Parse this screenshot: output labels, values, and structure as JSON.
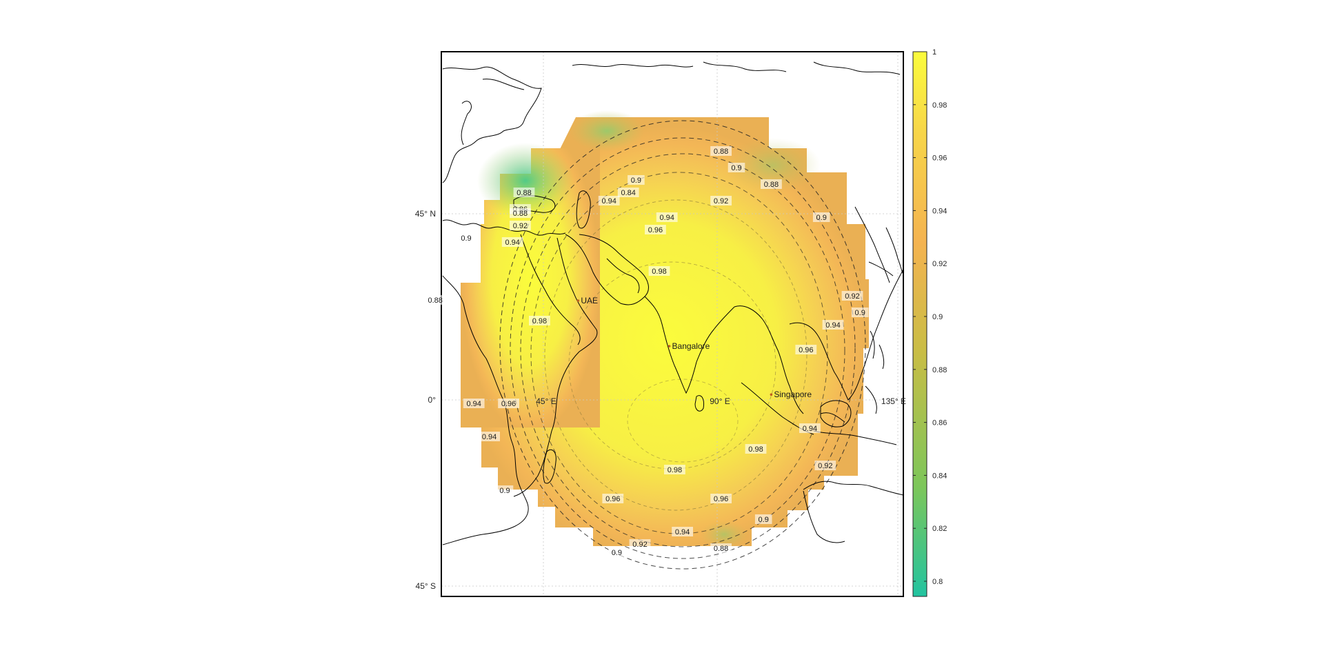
{
  "figure": {
    "colormap": [
      "#22c3a0",
      "#7cc65a",
      "#c9bd45",
      "#f4b350",
      "#f7d549",
      "#fbfc3c"
    ],
    "colorbar_range": [
      0.8,
      1.0
    ],
    "colorbar_ticks": [
      "0.8",
      "0.82",
      "0.84",
      "0.86",
      "0.88",
      "0.9",
      "0.92",
      "0.94",
      "0.96",
      "0.98",
      "1"
    ]
  },
  "map": {
    "lat_labels": [
      {
        "text": "45° N",
        "lat": 45
      },
      {
        "text": "0°",
        "lat": 0
      },
      {
        "text": "45° S",
        "lat": -45
      }
    ],
    "lon_labels": [
      {
        "text": "45° E",
        "lon": 45
      },
      {
        "text": "90° E",
        "lon": 90
      },
      {
        "text": "135° E",
        "lon": 135
      }
    ],
    "cities": [
      {
        "name": "UAE",
        "lon": 54,
        "lat": 24
      },
      {
        "name": "Bangalore",
        "lon": 77.6,
        "lat": 13
      },
      {
        "name": "Singapore",
        "lon": 104,
        "lat": 1.3
      }
    ],
    "contour_labels": [
      {
        "text": "0.84",
        "lon": 67,
        "lat": 50
      },
      {
        "text": "0.9",
        "lon": 69,
        "lat": 53
      },
      {
        "text": "0.88",
        "lon": 91,
        "lat": 60
      },
      {
        "text": "0.9",
        "lon": 95,
        "lat": 56
      },
      {
        "text": "0.88",
        "lon": 104,
        "lat": 52
      },
      {
        "text": "0.88",
        "lon": 40,
        "lat": 50
      },
      {
        "text": "0.94",
        "lon": 62,
        "lat": 48
      },
      {
        "text": "0.92",
        "lon": 91,
        "lat": 48
      },
      {
        "text": "0.86",
        "lon": 39,
        "lat": 46
      },
      {
        "text": "0.88",
        "lon": 39,
        "lat": 45
      },
      {
        "text": "0.92",
        "lon": 39,
        "lat": 42
      },
      {
        "text": "0.94",
        "lon": 77,
        "lat": 44
      },
      {
        "text": "0.96",
        "lon": 74,
        "lat": 41
      },
      {
        "text": "0.9",
        "lon": 117,
        "lat": 44
      },
      {
        "text": "0.9",
        "lon": 25,
        "lat": 39
      },
      {
        "text": "0.94",
        "lon": 37,
        "lat": 38
      },
      {
        "text": "0.98",
        "lon": 75,
        "lat": 31
      },
      {
        "text": "0.88",
        "lon": 17,
        "lat": 24
      },
      {
        "text": "0.92",
        "lon": 125,
        "lat": 25
      },
      {
        "text": "0.9",
        "lon": 127,
        "lat": 21
      },
      {
        "text": "0.98",
        "lon": 44,
        "lat": 19
      },
      {
        "text": "0.94",
        "lon": 120,
        "lat": 18
      },
      {
        "text": "0.96",
        "lon": 113,
        "lat": 12
      },
      {
        "text": "0.96",
        "lon": 36,
        "lat": -1
      },
      {
        "text": "0.94",
        "lon": 27,
        "lat": -1
      },
      {
        "text": "0.94",
        "lon": 31,
        "lat": -9
      },
      {
        "text": "0.94",
        "lon": 114,
        "lat": -7
      },
      {
        "text": "0.98",
        "lon": 100,
        "lat": -12
      },
      {
        "text": "0.92",
        "lon": 118,
        "lat": -16
      },
      {
        "text": "0.98",
        "lon": 79,
        "lat": -17
      },
      {
        "text": "0.9",
        "lon": 35,
        "lat": -22
      },
      {
        "text": "0.96",
        "lon": 63,
        "lat": -24
      },
      {
        "text": "0.96",
        "lon": 91,
        "lat": -24
      },
      {
        "text": "0.9",
        "lon": 102,
        "lat": -29
      },
      {
        "text": "0.94",
        "lon": 81,
        "lat": -32
      },
      {
        "text": "0.92",
        "lon": 70,
        "lat": -35
      },
      {
        "text": "0.9",
        "lon": 64,
        "lat": -37
      },
      {
        "text": "0.88",
        "lon": 91,
        "lat": -36
      }
    ]
  }
}
